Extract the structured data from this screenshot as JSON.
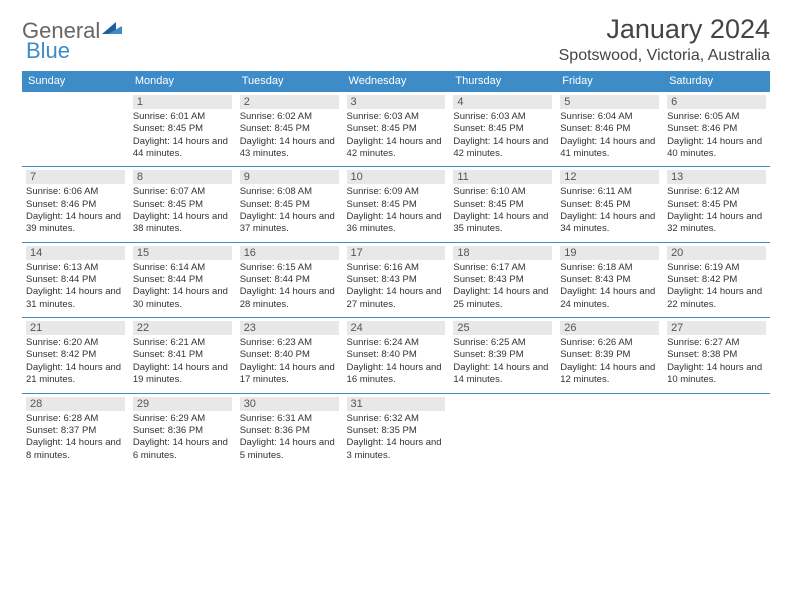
{
  "brand": {
    "general": "General",
    "blue": "Blue"
  },
  "title": {
    "month": "January 2024",
    "location": "Spotswood, Victoria, Australia"
  },
  "colors": {
    "header_bg": "#3d8bc7",
    "daynum_bg": "#e8e8e8",
    "rule": "#3d8bc7",
    "text": "#333333"
  },
  "day_headers": [
    "Sunday",
    "Monday",
    "Tuesday",
    "Wednesday",
    "Thursday",
    "Friday",
    "Saturday"
  ],
  "weeks": [
    {
      "cells": [
        {
          "blank": true
        },
        {
          "n": "1",
          "sr": "Sunrise: 6:01 AM",
          "ss": "Sunset: 8:45 PM",
          "dl": "Daylight: 14 hours and 44 minutes."
        },
        {
          "n": "2",
          "sr": "Sunrise: 6:02 AM",
          "ss": "Sunset: 8:45 PM",
          "dl": "Daylight: 14 hours and 43 minutes."
        },
        {
          "n": "3",
          "sr": "Sunrise: 6:03 AM",
          "ss": "Sunset: 8:45 PM",
          "dl": "Daylight: 14 hours and 42 minutes."
        },
        {
          "n": "4",
          "sr": "Sunrise: 6:03 AM",
          "ss": "Sunset: 8:45 PM",
          "dl": "Daylight: 14 hours and 42 minutes."
        },
        {
          "n": "5",
          "sr": "Sunrise: 6:04 AM",
          "ss": "Sunset: 8:46 PM",
          "dl": "Daylight: 14 hours and 41 minutes."
        },
        {
          "n": "6",
          "sr": "Sunrise: 6:05 AM",
          "ss": "Sunset: 8:46 PM",
          "dl": "Daylight: 14 hours and 40 minutes."
        }
      ]
    },
    {
      "cells": [
        {
          "n": "7",
          "sr": "Sunrise: 6:06 AM",
          "ss": "Sunset: 8:46 PM",
          "dl": "Daylight: 14 hours and 39 minutes."
        },
        {
          "n": "8",
          "sr": "Sunrise: 6:07 AM",
          "ss": "Sunset: 8:45 PM",
          "dl": "Daylight: 14 hours and 38 minutes."
        },
        {
          "n": "9",
          "sr": "Sunrise: 6:08 AM",
          "ss": "Sunset: 8:45 PM",
          "dl": "Daylight: 14 hours and 37 minutes."
        },
        {
          "n": "10",
          "sr": "Sunrise: 6:09 AM",
          "ss": "Sunset: 8:45 PM",
          "dl": "Daylight: 14 hours and 36 minutes."
        },
        {
          "n": "11",
          "sr": "Sunrise: 6:10 AM",
          "ss": "Sunset: 8:45 PM",
          "dl": "Daylight: 14 hours and 35 minutes."
        },
        {
          "n": "12",
          "sr": "Sunrise: 6:11 AM",
          "ss": "Sunset: 8:45 PM",
          "dl": "Daylight: 14 hours and 34 minutes."
        },
        {
          "n": "13",
          "sr": "Sunrise: 6:12 AM",
          "ss": "Sunset: 8:45 PM",
          "dl": "Daylight: 14 hours and 32 minutes."
        }
      ]
    },
    {
      "cells": [
        {
          "n": "14",
          "sr": "Sunrise: 6:13 AM",
          "ss": "Sunset: 8:44 PM",
          "dl": "Daylight: 14 hours and 31 minutes."
        },
        {
          "n": "15",
          "sr": "Sunrise: 6:14 AM",
          "ss": "Sunset: 8:44 PM",
          "dl": "Daylight: 14 hours and 30 minutes."
        },
        {
          "n": "16",
          "sr": "Sunrise: 6:15 AM",
          "ss": "Sunset: 8:44 PM",
          "dl": "Daylight: 14 hours and 28 minutes."
        },
        {
          "n": "17",
          "sr": "Sunrise: 6:16 AM",
          "ss": "Sunset: 8:43 PM",
          "dl": "Daylight: 14 hours and 27 minutes."
        },
        {
          "n": "18",
          "sr": "Sunrise: 6:17 AM",
          "ss": "Sunset: 8:43 PM",
          "dl": "Daylight: 14 hours and 25 minutes."
        },
        {
          "n": "19",
          "sr": "Sunrise: 6:18 AM",
          "ss": "Sunset: 8:43 PM",
          "dl": "Daylight: 14 hours and 24 minutes."
        },
        {
          "n": "20",
          "sr": "Sunrise: 6:19 AM",
          "ss": "Sunset: 8:42 PM",
          "dl": "Daylight: 14 hours and 22 minutes."
        }
      ]
    },
    {
      "cells": [
        {
          "n": "21",
          "sr": "Sunrise: 6:20 AM",
          "ss": "Sunset: 8:42 PM",
          "dl": "Daylight: 14 hours and 21 minutes."
        },
        {
          "n": "22",
          "sr": "Sunrise: 6:21 AM",
          "ss": "Sunset: 8:41 PM",
          "dl": "Daylight: 14 hours and 19 minutes."
        },
        {
          "n": "23",
          "sr": "Sunrise: 6:23 AM",
          "ss": "Sunset: 8:40 PM",
          "dl": "Daylight: 14 hours and 17 minutes."
        },
        {
          "n": "24",
          "sr": "Sunrise: 6:24 AM",
          "ss": "Sunset: 8:40 PM",
          "dl": "Daylight: 14 hours and 16 minutes."
        },
        {
          "n": "25",
          "sr": "Sunrise: 6:25 AM",
          "ss": "Sunset: 8:39 PM",
          "dl": "Daylight: 14 hours and 14 minutes."
        },
        {
          "n": "26",
          "sr": "Sunrise: 6:26 AM",
          "ss": "Sunset: 8:39 PM",
          "dl": "Daylight: 14 hours and 12 minutes."
        },
        {
          "n": "27",
          "sr": "Sunrise: 6:27 AM",
          "ss": "Sunset: 8:38 PM",
          "dl": "Daylight: 14 hours and 10 minutes."
        }
      ]
    },
    {
      "cells": [
        {
          "n": "28",
          "sr": "Sunrise: 6:28 AM",
          "ss": "Sunset: 8:37 PM",
          "dl": "Daylight: 14 hours and 8 minutes."
        },
        {
          "n": "29",
          "sr": "Sunrise: 6:29 AM",
          "ss": "Sunset: 8:36 PM",
          "dl": "Daylight: 14 hours and 6 minutes."
        },
        {
          "n": "30",
          "sr": "Sunrise: 6:31 AM",
          "ss": "Sunset: 8:36 PM",
          "dl": "Daylight: 14 hours and 5 minutes."
        },
        {
          "n": "31",
          "sr": "Sunrise: 6:32 AM",
          "ss": "Sunset: 8:35 PM",
          "dl": "Daylight: 14 hours and 3 minutes."
        },
        {
          "blank": true
        },
        {
          "blank": true
        },
        {
          "blank": true
        }
      ]
    }
  ]
}
